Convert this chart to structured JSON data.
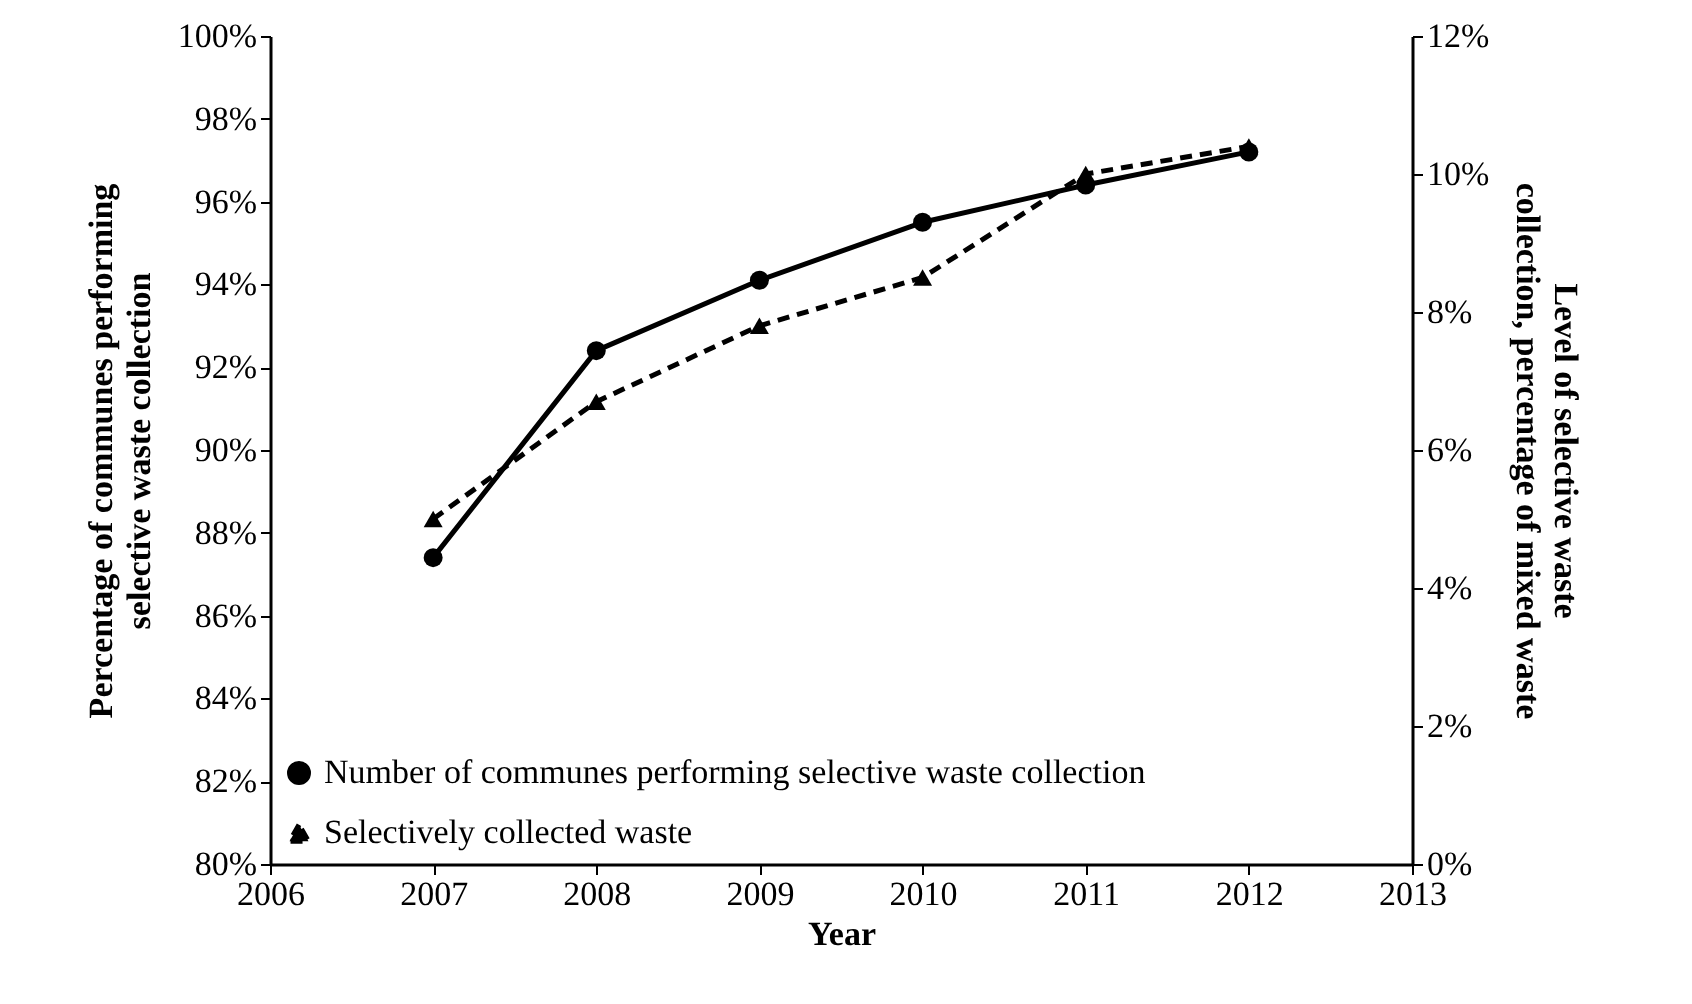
{
  "chart_data": {
    "type": "line",
    "xlabel": "Year",
    "ylabel": "Percentage of communes performing selective waste collection",
    "y2label": "Level of selective waste collection, percentage of mixed waste",
    "x": [
      2007,
      2008,
      2009,
      2010,
      2011,
      2012
    ],
    "series": [
      {
        "name": "Number of communes performing selective waste collection",
        "color": "#000000",
        "marker": "circle",
        "line_style": "solid",
        "values": [
          87.4,
          92.4,
          94.1,
          95.5,
          96.4,
          97.2
        ]
      },
      {
        "name": "Selectively collected waste",
        "color": "#000000",
        "marker": "triangle",
        "line_style": "dashed",
        "axis": "y2",
        "values": [
          5.0,
          6.7,
          7.8,
          8.5,
          10.0,
          10.4
        ]
      }
    ],
    "xlim": [
      2006,
      2013
    ],
    "xticks": [
      2006,
      2007,
      2008,
      2009,
      2010,
      2011,
      2012,
      2013
    ],
    "ylim": [
      80,
      100
    ],
    "yticks": [
      {
        "value": 80,
        "label": "80%"
      },
      {
        "value": 82,
        "label": "82%"
      },
      {
        "value": 84,
        "label": "84%"
      },
      {
        "value": 86,
        "label": "86%"
      },
      {
        "value": 88,
        "label": "88%"
      },
      {
        "value": 90,
        "label": "90%"
      },
      {
        "value": 92,
        "label": "92%"
      },
      {
        "value": 94,
        "label": "94%"
      },
      {
        "value": 96,
        "label": "96%"
      },
      {
        "value": 98,
        "label": "98%"
      },
      {
        "value": 100,
        "label": "100%"
      }
    ],
    "y2lim": [
      0,
      12
    ],
    "y2ticks": [
      {
        "value": 0,
        "label": "0%"
      },
      {
        "value": 2,
        "label": "2%"
      },
      {
        "value": 4,
        "label": "4%"
      },
      {
        "value": 6,
        "label": "6%"
      },
      {
        "value": 8,
        "label": "8%"
      },
      {
        "value": 10,
        "label": "10%"
      },
      {
        "value": 12,
        "label": "12%"
      }
    ],
    "legend": "bottom left",
    "grid": false
  }
}
